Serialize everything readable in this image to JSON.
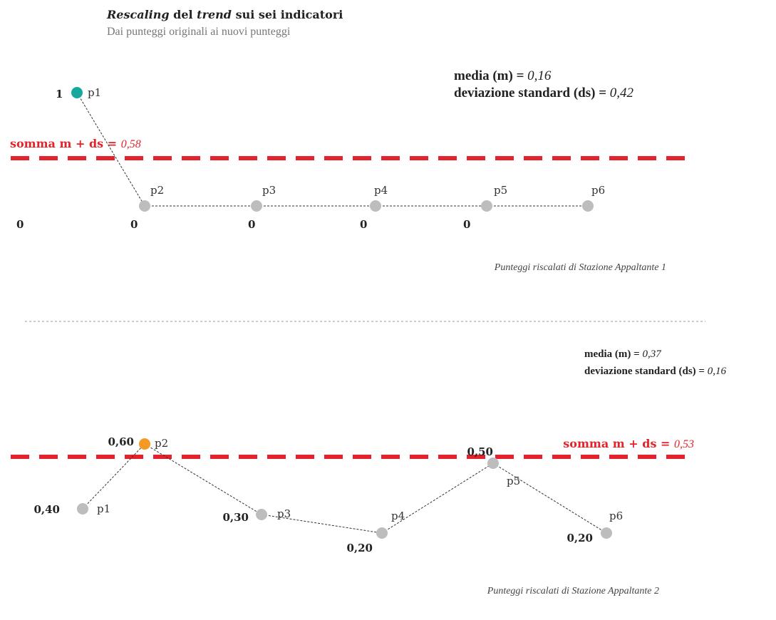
{
  "title": {
    "part1": "Rescaling",
    "part2": " del ",
    "part3": "trend",
    "part4": " sui sei indicatori"
  },
  "subtitle": "Dai punteggi originali ai nuovi punteggi",
  "colors": {
    "threshold": "#e3232b",
    "point": "#bdbdbd",
    "highlight_1": "#16a89a",
    "highlight_2": "#f39a25",
    "connector": "#333333",
    "separator": "#999999"
  },
  "panel1": {
    "stats": {
      "mean_label": "media (m) = ",
      "mean_value": "0,16",
      "sd_label": "deviazione standard (ds) = ",
      "sd_value": "0,42"
    },
    "threshold": {
      "label": "somma m + ds = ",
      "value": "0,58"
    },
    "points": [
      {
        "name": "p1",
        "value": "1",
        "highlight": true
      },
      {
        "name": "p2",
        "value": "0",
        "highlight": false
      },
      {
        "name": "p3",
        "value": "0",
        "highlight": false
      },
      {
        "name": "p4",
        "value": "0",
        "highlight": false
      },
      {
        "name": "p5",
        "value": "0",
        "highlight": false
      },
      {
        "name": "p6",
        "value": "",
        "highlight": false
      }
    ],
    "extra_value": "0",
    "caption": "Punteggi riscalati di Stazione Appaltante 1"
  },
  "panel2": {
    "stats": {
      "mean_label": "media (m) = ",
      "mean_value": "0,37",
      "sd_label": "deviazione standard (ds) = ",
      "sd_value": "0,16"
    },
    "threshold": {
      "label": "somma m + ds = ",
      "value": "0,53"
    },
    "points": [
      {
        "name": "p1",
        "value": "0,40",
        "highlight": false
      },
      {
        "name": "p2",
        "value": "0,60",
        "highlight": true
      },
      {
        "name": "p3",
        "value": "0,30",
        "highlight": false
      },
      {
        "name": "p4",
        "value": "0,20",
        "highlight": false
      },
      {
        "name": "p5",
        "value": "0,50",
        "highlight": false
      },
      {
        "name": "p6",
        "value": "0,20",
        "highlight": false
      }
    ],
    "caption": "Punteggi riscalati di Stazione Appaltante 2"
  }
}
